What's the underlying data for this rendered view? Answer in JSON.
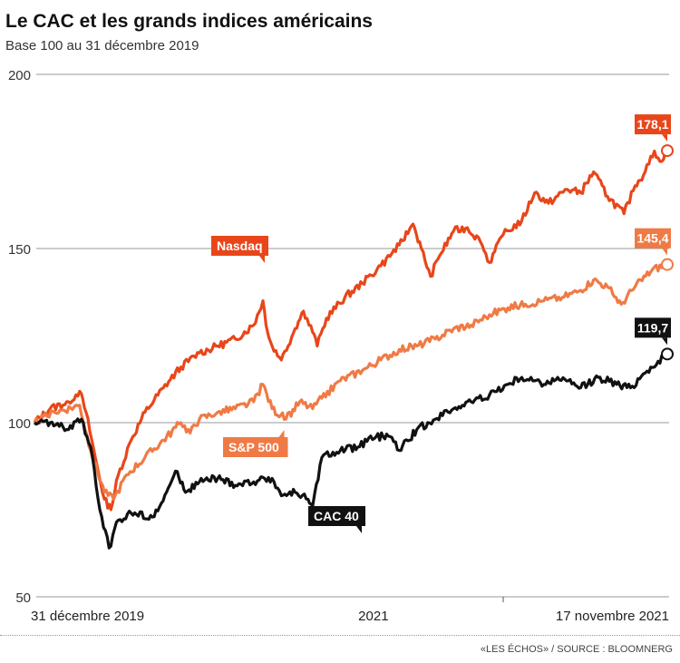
{
  "title": "Le CAC et les grands indices américains",
  "subtitle": "Base 100 au 31 décembre 2019",
  "source": "«LES ÉCHOS» / SOURCE : BLOOMNERG",
  "chart_data": {
    "type": "line",
    "title": "Le CAC et les grands indices américains",
    "subtitle": "Base 100 au 31 décembre 2019",
    "x_unit": "days since 31 décembre 2019",
    "xlim": [
      0,
      687
    ],
    "ylim": [
      50,
      200
    ],
    "y_ticks": [
      "50",
      "100",
      "150",
      "200"
    ],
    "x_labels": [
      {
        "day": 0,
        "label": "31 décembre 2019"
      },
      {
        "day": 366,
        "label": "2021"
      },
      {
        "day": 687,
        "label": "17 novembre 2021"
      }
    ],
    "series": [
      {
        "name": "Nasdaq",
        "color": "#e8461a",
        "end_label": "178,1",
        "points": [
          [
            0,
            100
          ],
          [
            17,
            104
          ],
          [
            37,
            106
          ],
          [
            49,
            109
          ],
          [
            56,
            103
          ],
          [
            66,
            90
          ],
          [
            76,
            78
          ],
          [
            83,
            75
          ],
          [
            91,
            85
          ],
          [
            105,
            95
          ],
          [
            120,
            103
          ],
          [
            140,
            110
          ],
          [
            159,
            116
          ],
          [
            179,
            120
          ],
          [
            199,
            122
          ],
          [
            218,
            124
          ],
          [
            238,
            128
          ],
          [
            248,
            135
          ],
          [
            253,
            126
          ],
          [
            258,
            122
          ],
          [
            268,
            118
          ],
          [
            283,
            127
          ],
          [
            292,
            132
          ],
          [
            302,
            126
          ],
          [
            307,
            122
          ],
          [
            317,
            130
          ],
          [
            337,
            136
          ],
          [
            356,
            140
          ],
          [
            376,
            145
          ],
          [
            396,
            151
          ],
          [
            411,
            157
          ],
          [
            420,
            150
          ],
          [
            430,
            142
          ],
          [
            440,
            148
          ],
          [
            455,
            155
          ],
          [
            470,
            156
          ],
          [
            484,
            152
          ],
          [
            494,
            146
          ],
          [
            509,
            154
          ],
          [
            529,
            158
          ],
          [
            543,
            166
          ],
          [
            558,
            163
          ],
          [
            578,
            167
          ],
          [
            593,
            166
          ],
          [
            607,
            172
          ],
          [
            622,
            165
          ],
          [
            640,
            160
          ],
          [
            652,
            168
          ],
          [
            663,
            172
          ],
          [
            673,
            178
          ],
          [
            679,
            175
          ],
          [
            687,
            178.1
          ]
        ]
      },
      {
        "name": "S&P 500",
        "color": "#f07a45",
        "end_label": "145,4",
        "points": [
          [
            0,
            100
          ],
          [
            22,
            103
          ],
          [
            49,
            105
          ],
          [
            61,
            92
          ],
          [
            76,
            80
          ],
          [
            86,
            78
          ],
          [
            100,
            85
          ],
          [
            120,
            90
          ],
          [
            140,
            95
          ],
          [
            159,
            100
          ],
          [
            169,
            97
          ],
          [
            179,
            101
          ],
          [
            199,
            103
          ],
          [
            218,
            104
          ],
          [
            238,
            106
          ],
          [
            248,
            111
          ],
          [
            258,
            104
          ],
          [
            273,
            101
          ],
          [
            288,
            106
          ],
          [
            302,
            104
          ],
          [
            312,
            107
          ],
          [
            332,
            112
          ],
          [
            356,
            115
          ],
          [
            376,
            118
          ],
          [
            396,
            121
          ],
          [
            415,
            122
          ],
          [
            435,
            124
          ],
          [
            455,
            127
          ],
          [
            474,
            128
          ],
          [
            494,
            131
          ],
          [
            514,
            133
          ],
          [
            533,
            134
          ],
          [
            553,
            135
          ],
          [
            573,
            136
          ],
          [
            593,
            138
          ],
          [
            607,
            141
          ],
          [
            622,
            139
          ],
          [
            637,
            134
          ],
          [
            652,
            139
          ],
          [
            671,
            144
          ],
          [
            687,
            145.4
          ]
        ]
      },
      {
        "name": "CAC 40",
        "color": "#111111",
        "end_label": "119,7",
        "points": [
          [
            0,
            100
          ],
          [
            17,
            100
          ],
          [
            37,
            98
          ],
          [
            51,
            101
          ],
          [
            61,
            93
          ],
          [
            71,
            75
          ],
          [
            81,
            64
          ],
          [
            91,
            72
          ],
          [
            105,
            74
          ],
          [
            130,
            73
          ],
          [
            155,
            86
          ],
          [
            164,
            80
          ],
          [
            179,
            83
          ],
          [
            199,
            84
          ],
          [
            218,
            82
          ],
          [
            238,
            83
          ],
          [
            258,
            84
          ],
          [
            268,
            79
          ],
          [
            283,
            80
          ],
          [
            297,
            78
          ],
          [
            302,
            76
          ],
          [
            312,
            90
          ],
          [
            332,
            92
          ],
          [
            351,
            93
          ],
          [
            371,
            96
          ],
          [
            386,
            96
          ],
          [
            396,
            92
          ],
          [
            415,
            98
          ],
          [
            435,
            101
          ],
          [
            455,
            104
          ],
          [
            474,
            106
          ],
          [
            494,
            108
          ],
          [
            514,
            111
          ],
          [
            529,
            113
          ],
          [
            543,
            112
          ],
          [
            553,
            111
          ],
          [
            568,
            113
          ],
          [
            593,
            110
          ],
          [
            612,
            113
          ],
          [
            632,
            111
          ],
          [
            647,
            110
          ],
          [
            661,
            114
          ],
          [
            687,
            119.7
          ]
        ]
      }
    ],
    "legend": "inline labels"
  }
}
